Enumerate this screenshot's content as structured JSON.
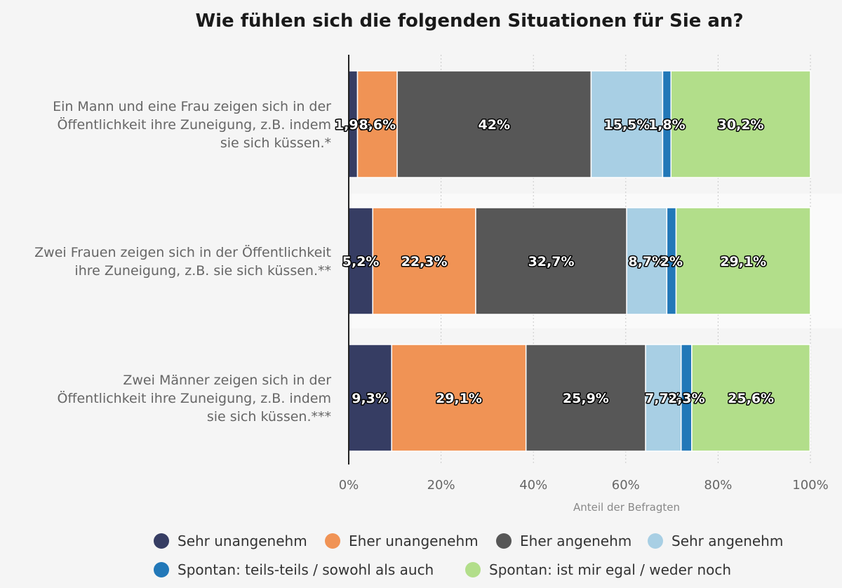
{
  "chart_data": {
    "type": "bar",
    "orientation": "horizontal",
    "stacked": true,
    "title": "Wie fühlen sich die folgenden Situationen für Sie an?",
    "xlabel": "Anteil der Befragten",
    "xlim": [
      0,
      100
    ],
    "ticks": [
      "0%",
      "20%",
      "40%",
      "60%",
      "80%",
      "100%"
    ],
    "tick_values": [
      0,
      20,
      40,
      60,
      80,
      100
    ],
    "grid": true,
    "legend_position": "bottom",
    "categories": [
      [
        "Ein Mann und eine Frau zeigen sich in der",
        "Öffentlichkeit ihre Zuneigung, z.B. indem",
        "sie sich küssen.*"
      ],
      [
        "Zwei Frauen zeigen sich in der Öffentlichkeit",
        "ihre Zuneigung, z.B. sie sich küssen.**"
      ],
      [
        "Zwei Männer zeigen sich in der",
        "Öffentlichkeit ihre Zuneigung, z.B. indem",
        "sie sich küssen.***"
      ]
    ],
    "series": [
      {
        "name": "Sehr unangenehm",
        "color": "#363d63",
        "values": [
          1.9,
          5.2,
          9.3
        ],
        "labels": [
          "1,9%",
          "5,2%",
          "9,3%"
        ]
      },
      {
        "name": "Eher unangenehm",
        "color": "#f09355",
        "values": [
          8.6,
          22.3,
          29.1
        ],
        "labels": [
          "8,6%",
          "22,3%",
          "29,1%"
        ]
      },
      {
        "name": "Eher angenehm",
        "color": "#575757",
        "values": [
          42,
          32.7,
          25.9
        ],
        "labels": [
          "42%",
          "32,7%",
          "25,9%"
        ]
      },
      {
        "name": "Sehr angenehm",
        "color": "#a8cfe4",
        "values": [
          15.5,
          8.7,
          7.7
        ],
        "labels": [
          "15,5%",
          "8,7%",
          "7,7%"
        ]
      },
      {
        "name": "Spontan: teils-teils / sowohl als auch",
        "color": "#2278b8",
        "values": [
          1.8,
          2,
          2.3
        ],
        "labels": [
          "1,8%",
          "2%",
          "2,3%"
        ]
      },
      {
        "name": "Spontan: ist mir egal / weder noch",
        "color": "#b2de8a",
        "values": [
          30.2,
          29.1,
          25.6
        ],
        "labels": [
          "30,2%",
          "29,1%",
          "25,6%"
        ]
      }
    ]
  }
}
